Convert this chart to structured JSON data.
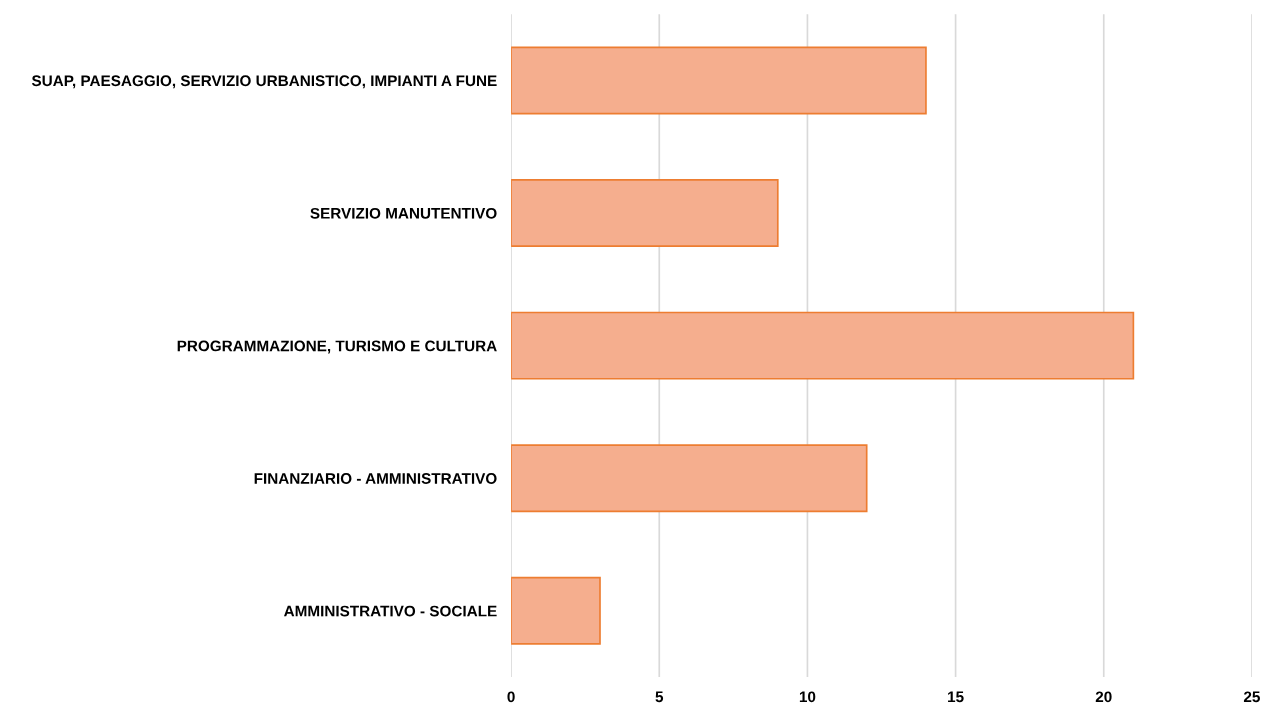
{
  "chart_data": {
    "type": "bar",
    "orientation": "horizontal",
    "categories": [
      "SUAP, PAESAGGIO, SERVIZIO URBANISTICO, IMPIANTI A FUNE",
      "SERVIZIO MANUTENTIVO",
      "PROGRAMMAZIONE, TURISMO E CULTURA",
      "FINANZIARIO - AMMINISTRATIVO",
      "AMMINISTRATIVO - SOCIALE"
    ],
    "values": [
      14,
      9,
      21,
      12,
      3
    ],
    "color": "#f5ae8e",
    "xlim": [
      0,
      25
    ],
    "xticks": [
      0,
      5,
      10,
      15,
      20,
      25
    ],
    "grid": "x"
  }
}
